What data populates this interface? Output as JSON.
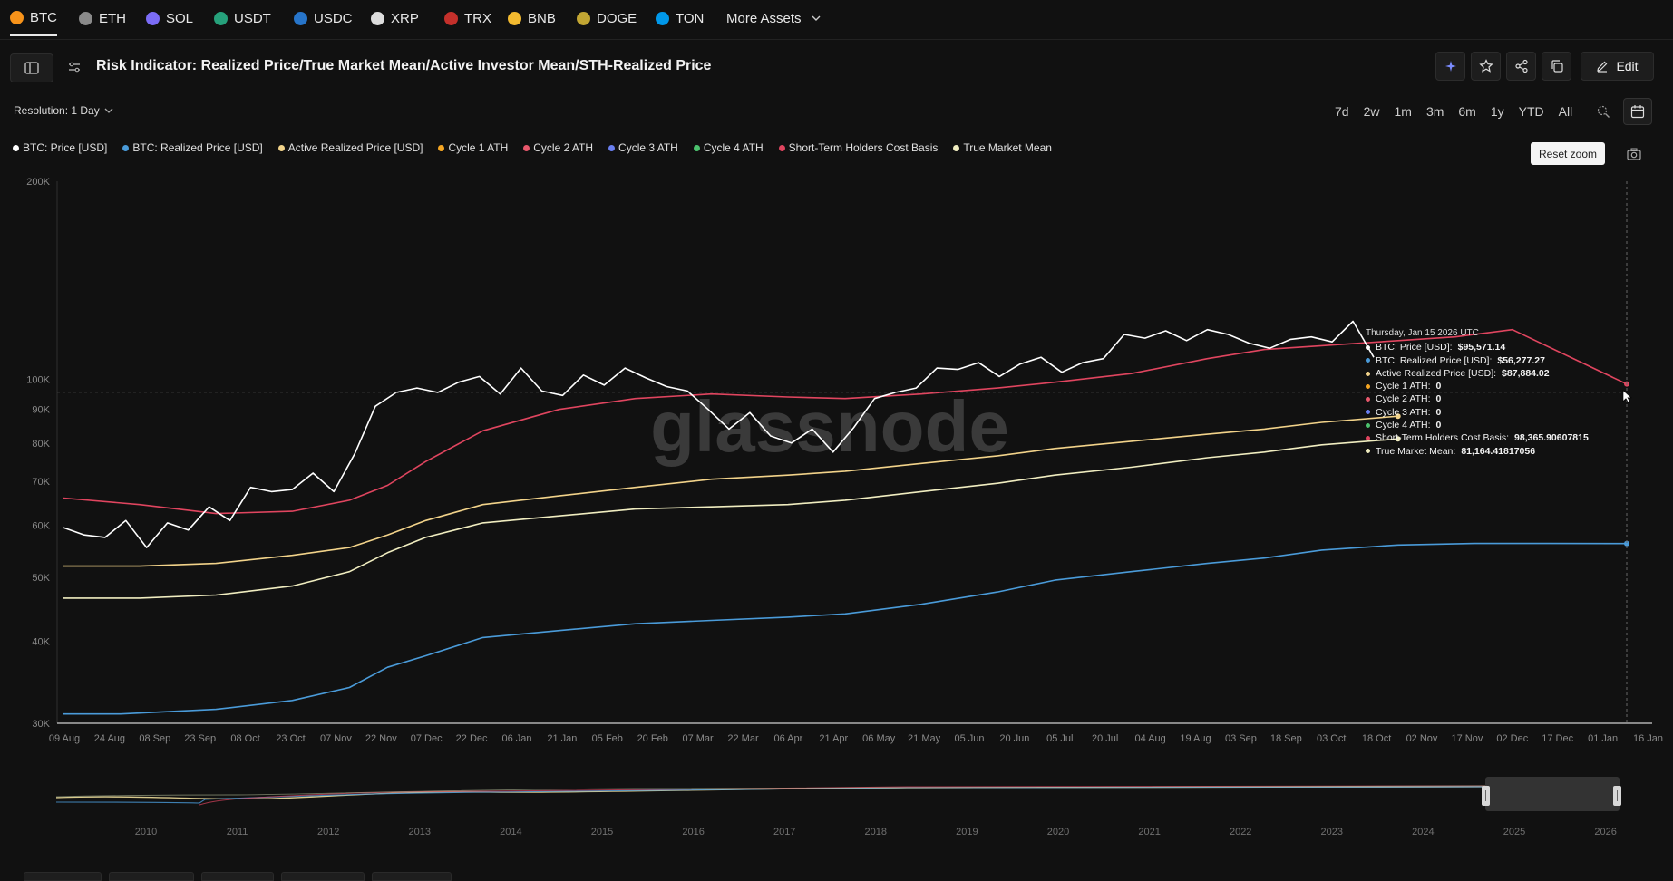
{
  "assets": [
    {
      "label": "BTC",
      "icon": "bitcoin-icon",
      "color": "#f7931a",
      "active": true
    },
    {
      "label": "ETH",
      "icon": "ethereum-icon",
      "color": "#8a8a8a"
    },
    {
      "label": "SOL",
      "icon": "solana-icon",
      "color": "#7b6cf6"
    },
    {
      "label": "USDT",
      "icon": "tether-icon",
      "color": "#26a17b"
    },
    {
      "label": "USDC",
      "icon": "usdc-icon",
      "color": "#2775ca"
    },
    {
      "label": "XRP",
      "icon": "xrp-icon",
      "color": "#dddddd"
    },
    {
      "label": "TRX",
      "icon": "tron-icon",
      "color": "#c4302b"
    },
    {
      "label": "BNB",
      "icon": "bnb-icon",
      "color": "#f3ba2f"
    },
    {
      "label": "DOGE",
      "icon": "doge-icon",
      "color": "#c2a633"
    },
    {
      "label": "TON",
      "icon": "toncoin-icon",
      "color": "#0098ea"
    }
  ],
  "more_assets_label": "More Assets",
  "header": {
    "title": "Risk Indicator: Realized Price/True Market Mean/Active Investor Mean/STH-Realized Price",
    "edit_label": "Edit"
  },
  "resolution_label": "Resolution: 1 Day",
  "ranges": [
    "7d",
    "2w",
    "1m",
    "3m",
    "6m",
    "1y",
    "YTD",
    "All"
  ],
  "reset_zoom_label": "Reset zoom",
  "legend": [
    {
      "label": "BTC: Price [USD]",
      "color": "#ffffff"
    },
    {
      "label": "BTC: Realized Price [USD]",
      "color": "#4a9bd9"
    },
    {
      "label": "Active Realized Price [USD]",
      "color": "#f2d38a"
    },
    {
      "label": "Cycle 1 ATH",
      "color": "#f5a623"
    },
    {
      "label": "Cycle 2 ATH",
      "color": "#e8586c"
    },
    {
      "label": "Cycle 3 ATH",
      "color": "#6a7ff0"
    },
    {
      "label": "Cycle 4 ATH",
      "color": "#4cc26e"
    },
    {
      "label": "Short-Term Holders Cost Basis",
      "color": "#e0455f"
    },
    {
      "label": "True Market Mean",
      "color": "#f0edc0"
    }
  ],
  "watermark": "glassnode",
  "tooltip": {
    "date": "Thursday, Jan 15 2026 UTC",
    "rows": [
      {
        "label": "BTC: Price [USD]:",
        "value": "$95,571.14",
        "color": "#ffffff"
      },
      {
        "label": "BTC: Realized Price [USD]:",
        "value": "$56,277.27",
        "color": "#4a9bd9"
      },
      {
        "label": "Active Realized Price [USD]:",
        "value": "$87,884.02",
        "color": "#f2d38a"
      },
      {
        "label": "Cycle 1 ATH:",
        "value": "0",
        "color": "#f5a623"
      },
      {
        "label": "Cycle 2 ATH:",
        "value": "0",
        "color": "#e8586c"
      },
      {
        "label": "Cycle 3 ATH:",
        "value": "0",
        "color": "#6a7ff0"
      },
      {
        "label": "Cycle 4 ATH:",
        "value": "0",
        "color": "#4cc26e"
      },
      {
        "label": "Short-Term Holders Cost Basis:",
        "value": "98,365.90607815",
        "color": "#e0455f"
      },
      {
        "label": "True Market Mean:",
        "value": "81,164.41817056",
        "color": "#f0edc0"
      }
    ]
  },
  "navigator_years": [
    "2010",
    "2011",
    "2012",
    "2013",
    "2014",
    "2015",
    "2016",
    "2017",
    "2018",
    "2019",
    "2020",
    "2021",
    "2022",
    "2023",
    "2024",
    "2025",
    "2026"
  ],
  "chart_data": {
    "type": "line",
    "yscale": "log",
    "ylim": [
      30000,
      200000
    ],
    "yticks": [
      {
        "label": "200K",
        "value": 200000
      },
      {
        "label": "100K",
        "value": 100000
      },
      {
        "label": "90K",
        "value": 90000
      },
      {
        "label": "80K",
        "value": 80000
      },
      {
        "label": "70K",
        "value": 70000
      },
      {
        "label": "60K",
        "value": 60000
      },
      {
        "label": "50K",
        "value": 50000
      },
      {
        "label": "40K",
        "value": 40000
      },
      {
        "label": "30K",
        "value": 30000
      }
    ],
    "xticks": [
      "09 Aug",
      "24 Aug",
      "08 Sep",
      "23 Sep",
      "08 Oct",
      "23 Oct",
      "07 Nov",
      "22 Nov",
      "07 Dec",
      "22 Dec",
      "06 Jan",
      "21 Jan",
      "05 Feb",
      "20 Feb",
      "07 Mar",
      "22 Mar",
      "06 Apr",
      "21 Apr",
      "06 May",
      "21 May",
      "05 Jun",
      "20 Jun",
      "05 Jul",
      "20 Jul",
      "04 Aug",
      "19 Aug",
      "03 Sep",
      "18 Sep",
      "03 Oct",
      "18 Oct",
      "02 Nov",
      "17 Nov",
      "02 Dec",
      "17 Dec",
      "01 Jan",
      "16 Jan"
    ],
    "series": [
      {
        "name": "BTC: Price [USD]",
        "color": "#ffffff",
        "width": 1.6,
        "values": [
          [
            0,
            59500
          ],
          [
            1,
            58000
          ],
          [
            2,
            57500
          ],
          [
            3,
            61000
          ],
          [
            4,
            55500
          ],
          [
            5,
            60500
          ],
          [
            6,
            59000
          ],
          [
            7,
            64000
          ],
          [
            8,
            61000
          ],
          [
            9,
            68500
          ],
          [
            10,
            67500
          ],
          [
            11,
            68000
          ],
          [
            12,
            72000
          ],
          [
            13,
            67500
          ],
          [
            14,
            77000
          ],
          [
            15,
            91000
          ],
          [
            16,
            95500
          ],
          [
            17,
            97000
          ],
          [
            18,
            95500
          ],
          [
            19,
            99000
          ],
          [
            20,
            101000
          ],
          [
            21,
            95000
          ],
          [
            22,
            104000
          ],
          [
            23,
            96000
          ],
          [
            24,
            94500
          ],
          [
            25,
            101500
          ],
          [
            26,
            98000
          ],
          [
            27,
            104000
          ],
          [
            28,
            100500
          ],
          [
            29,
            97500
          ],
          [
            30,
            96000
          ],
          [
            31,
            90000
          ],
          [
            32,
            84000
          ],
          [
            33,
            89000
          ],
          [
            34,
            82000
          ],
          [
            35,
            80000
          ],
          [
            36,
            84000
          ],
          [
            37,
            77500
          ],
          [
            38,
            84500
          ],
          [
            39,
            93500
          ],
          [
            40,
            95500
          ],
          [
            41,
            97000
          ],
          [
            42,
            104000
          ],
          [
            43,
            103500
          ],
          [
            44,
            106000
          ],
          [
            45,
            101000
          ],
          [
            46,
            105500
          ],
          [
            47,
            108000
          ],
          [
            48,
            102500
          ],
          [
            49,
            106000
          ],
          [
            50,
            107500
          ],
          [
            51,
            117000
          ],
          [
            52,
            115500
          ],
          [
            53,
            118500
          ],
          [
            54,
            114500
          ],
          [
            55,
            119000
          ],
          [
            56,
            117000
          ],
          [
            57,
            113500
          ],
          [
            58,
            111500
          ],
          [
            59,
            115000
          ],
          [
            60,
            116000
          ],
          [
            61,
            114000
          ],
          [
            62,
            122500
          ],
          [
            63,
            108000
          ]
        ]
      },
      {
        "name": "BTC: Realized Price [USD]",
        "color": "#4a9bd9",
        "width": 1.6,
        "values": [
          [
            0,
            31000
          ],
          [
            3,
            31000
          ],
          [
            8,
            31500
          ],
          [
            12,
            32500
          ],
          [
            15,
            34000
          ],
          [
            17,
            36500
          ],
          [
            19,
            38000
          ],
          [
            22,
            40500
          ],
          [
            26,
            41500
          ],
          [
            30,
            42500
          ],
          [
            34,
            43000
          ],
          [
            38,
            43500
          ],
          [
            41,
            44000
          ],
          [
            45,
            45500
          ],
          [
            49,
            47500
          ],
          [
            52,
            49500
          ],
          [
            56,
            51000
          ],
          [
            60,
            52500
          ],
          [
            63,
            53500
          ],
          [
            66,
            55000
          ],
          [
            70,
            56000
          ],
          [
            74,
            56300
          ],
          [
            78,
            56300
          ],
          [
            82,
            56277
          ]
        ]
      },
      {
        "name": "Active Realized Price [USD]",
        "color": "#f2d38a",
        "width": 1.6,
        "values": [
          [
            0,
            52000
          ],
          [
            4,
            52000
          ],
          [
            8,
            52500
          ],
          [
            12,
            54000
          ],
          [
            15,
            55500
          ],
          [
            17,
            58000
          ],
          [
            19,
            61000
          ],
          [
            22,
            64500
          ],
          [
            26,
            66500
          ],
          [
            30,
            68500
          ],
          [
            34,
            70500
          ],
          [
            38,
            71500
          ],
          [
            41,
            72500
          ],
          [
            45,
            74500
          ],
          [
            49,
            76500
          ],
          [
            52,
            78500
          ],
          [
            56,
            80500
          ],
          [
            60,
            82500
          ],
          [
            63,
            84000
          ],
          [
            66,
            86000
          ],
          [
            70,
            87884
          ]
        ]
      },
      {
        "name": "Short-Term Holders Cost Basis",
        "color": "#e0455f",
        "width": 1.6,
        "values": [
          [
            0,
            66000
          ],
          [
            4,
            64500
          ],
          [
            8,
            62500
          ],
          [
            12,
            63000
          ],
          [
            15,
            65500
          ],
          [
            17,
            69000
          ],
          [
            19,
            75000
          ],
          [
            22,
            83500
          ],
          [
            26,
            90000
          ],
          [
            30,
            93500
          ],
          [
            34,
            95000
          ],
          [
            38,
            94000
          ],
          [
            41,
            93500
          ],
          [
            45,
            95000
          ],
          [
            49,
            97000
          ],
          [
            52,
            99000
          ],
          [
            56,
            102000
          ],
          [
            60,
            107500
          ],
          [
            63,
            111000
          ],
          [
            66,
            112500
          ],
          [
            70,
            114500
          ],
          [
            73,
            116000
          ],
          [
            76,
            119000
          ],
          [
            82,
            98366
          ]
        ]
      },
      {
        "name": "True Market Mean",
        "color": "#f0edc0",
        "width": 1.6,
        "values": [
          [
            0,
            46500
          ],
          [
            4,
            46500
          ],
          [
            8,
            47000
          ],
          [
            12,
            48500
          ],
          [
            15,
            51000
          ],
          [
            17,
            54500
          ],
          [
            19,
            57500
          ],
          [
            22,
            60500
          ],
          [
            26,
            62000
          ],
          [
            30,
            63500
          ],
          [
            34,
            64000
          ],
          [
            38,
            64500
          ],
          [
            41,
            65500
          ],
          [
            45,
            67500
          ],
          [
            49,
            69500
          ],
          [
            52,
            71500
          ],
          [
            56,
            73500
          ],
          [
            60,
            76000
          ],
          [
            63,
            77500
          ],
          [
            66,
            79500
          ],
          [
            70,
            81164
          ]
        ]
      }
    ]
  }
}
